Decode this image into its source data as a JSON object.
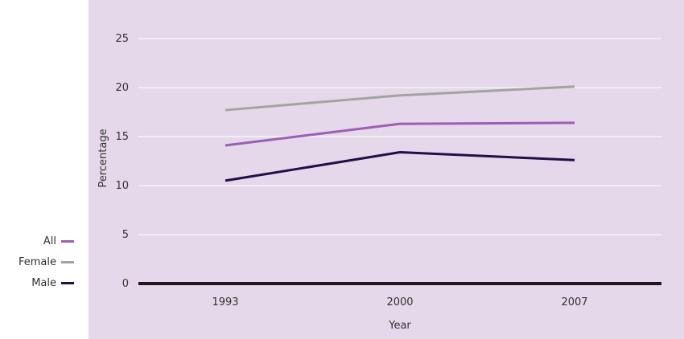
{
  "chart_data": {
    "type": "line",
    "title": "",
    "xlabel": "Year",
    "ylabel": "Percentage",
    "x": [
      "1993",
      "2000",
      "2007"
    ],
    "ylim": [
      0,
      25
    ],
    "yticks": [
      0,
      5,
      10,
      15,
      20,
      25
    ],
    "grid": true,
    "legend_position": "left",
    "background_color": "#e4d8ea",
    "series": [
      {
        "name": "All",
        "values": [
          14.1,
          16.3,
          16.4
        ],
        "color": "#9b5fb5"
      },
      {
        "name": "Female",
        "values": [
          17.7,
          19.2,
          20.1
        ],
        "color": "#a3a3a3"
      },
      {
        "name": "Male",
        "values": [
          10.5,
          13.4,
          12.6
        ],
        "color": "#260d47"
      }
    ]
  }
}
